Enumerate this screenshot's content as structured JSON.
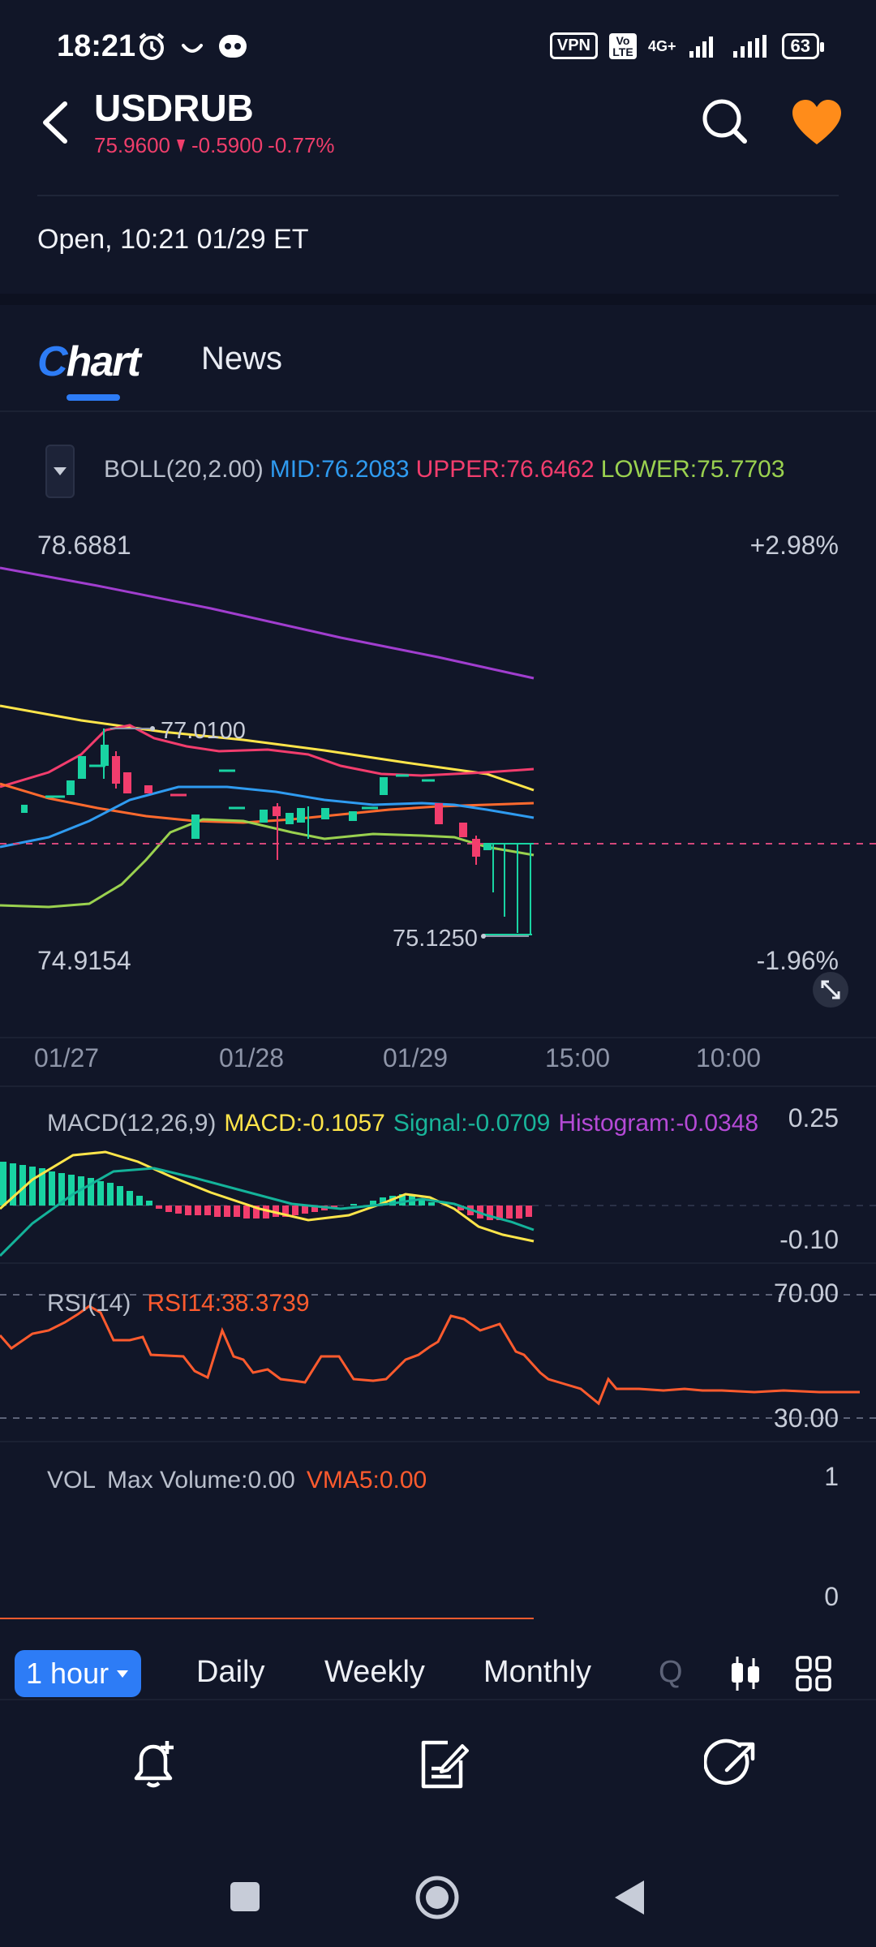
{
  "status_bar": {
    "time": "18:21",
    "vpn": "VPN",
    "volte": "Vo LTE",
    "network": "4G+",
    "battery": "63"
  },
  "header": {
    "ticker": "USDRUB",
    "price": "75.9600",
    "change": "-0.5900",
    "change_pct": "-0.77%",
    "market_status": "Open, 10:21 01/29 ET"
  },
  "tabs": [
    {
      "label": "Chart",
      "active": true
    },
    {
      "label": "News",
      "active": false
    }
  ],
  "boll_legend": {
    "name": "BOLL(20,2.00)",
    "mid": "MID:76.2083",
    "upper": "UPPER:76.6462",
    "lower": "LOWER:75.7703"
  },
  "price_axis": {
    "high": "78.6881",
    "low": "74.9154",
    "high_pct": "+2.98%",
    "low_pct": "-1.96%",
    "max_marker": "77.0100",
    "min_marker": "75.1250"
  },
  "x_axis": [
    "01/27",
    "01/28",
    "01/29",
    "15:00",
    "10:00"
  ],
  "macd": {
    "name": "MACD(12,26,9)",
    "macd": "MACD:-0.1057",
    "signal": "Signal:-0.0709",
    "histogram": "Histogram:-0.0348",
    "axis_top": "0.25",
    "axis_bottom": "-0.10"
  },
  "rsi": {
    "name": "RSI(14)",
    "value": "RSI14:38.3739",
    "upper": "70.00",
    "lower": "30.00"
  },
  "volume": {
    "name": "VOL",
    "max": "Max Volume:0.00",
    "vma": "VMA5:0.00",
    "axis_top": "1",
    "axis_bottom": "0"
  },
  "periods": {
    "active": "1 hour",
    "items": [
      "Daily",
      "Weekly",
      "Monthly",
      "Q"
    ]
  },
  "icons": {
    "back": "back-arrow-icon",
    "search": "search-icon",
    "favorite": "heart-icon",
    "alert": "alert-bell-icon",
    "note": "edit-note-icon",
    "share": "share-icon"
  },
  "colors": {
    "background": "#111628",
    "accent": "#2d7cf6",
    "down": "#ef3e6b",
    "up": "#19d3a2",
    "favorite": "#ff8c1a"
  }
}
